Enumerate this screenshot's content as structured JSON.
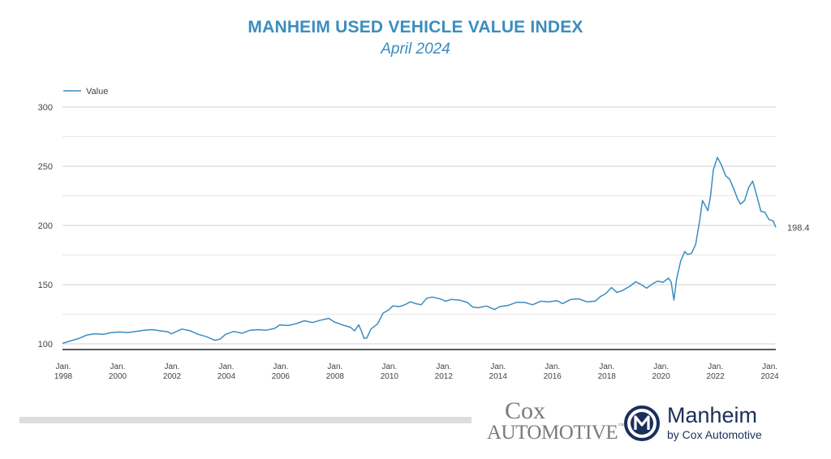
{
  "header": {
    "title": "MANHEIM USED VEHICLE VALUE INDEX",
    "subtitle": "April 2024"
  },
  "branding": {
    "cox_line1": "Cox",
    "cox_line2": "AUTOMOTIVE",
    "cox_tm": "™",
    "manheim_name": "Manheim",
    "manheim_tagline": "by Cox Automotive"
  },
  "colors": {
    "series": "#3a8dbf",
    "title": "#3a8dbf",
    "grid": "#d0d0d0",
    "axis": "#222222",
    "brand_navy": "#1a2f5a",
    "cox_grey": "#7a7a7a"
  },
  "chart_data": {
    "type": "line",
    "title": "",
    "xlabel": "",
    "ylabel": "",
    "legend": {
      "entries": [
        "Value"
      ],
      "position": "top-left"
    },
    "grid": true,
    "ylim": [
      100,
      300
    ],
    "yticks": [
      100,
      150,
      200,
      250,
      300
    ],
    "xlim": [
      1998.0,
      2024.25
    ],
    "xticks": [
      {
        "x": 1998,
        "label1": "Jan.",
        "label2": "1998"
      },
      {
        "x": 2000,
        "label1": "Jan.",
        "label2": "2000"
      },
      {
        "x": 2002,
        "label1": "Jan.",
        "label2": "2002"
      },
      {
        "x": 2004,
        "label1": "Jan.",
        "label2": "2004"
      },
      {
        "x": 2006,
        "label1": "Jan.",
        "label2": "2006"
      },
      {
        "x": 2008,
        "label1": "Jan.",
        "label2": "2008"
      },
      {
        "x": 2010,
        "label1": "Jan.",
        "label2": "2010"
      },
      {
        "x": 2012,
        "label1": "Jan.",
        "label2": "2012"
      },
      {
        "x": 2014,
        "label1": "Jan.",
        "label2": "2014"
      },
      {
        "x": 2016,
        "label1": "Jan.",
        "label2": "2016"
      },
      {
        "x": 2018,
        "label1": "Jan.",
        "label2": "2018"
      },
      {
        "x": 2020,
        "label1": "Jan.",
        "label2": "2020"
      },
      {
        "x": 2022,
        "label1": "Jan.",
        "label2": "2022"
      },
      {
        "x": 2024,
        "label1": "Jan.",
        "label2": "2024"
      }
    ],
    "end_label": "198.4",
    "series": [
      {
        "name": "Value",
        "points": [
          [
            1998.0,
            100.5
          ],
          [
            1998.3,
            102.5
          ],
          [
            1998.6,
            104.5
          ],
          [
            1998.9,
            107.5
          ],
          [
            1999.2,
            108.5
          ],
          [
            1999.5,
            108
          ],
          [
            1999.8,
            109.5
          ],
          [
            2000.1,
            110
          ],
          [
            2000.4,
            109.5
          ],
          [
            2000.7,
            110.5
          ],
          [
            2001.0,
            111.5
          ],
          [
            2001.3,
            112
          ],
          [
            2001.6,
            111
          ],
          [
            2001.9,
            110
          ],
          [
            2002.0,
            108.5
          ],
          [
            2002.2,
            110.5
          ],
          [
            2002.4,
            112.5
          ],
          [
            2002.7,
            111
          ],
          [
            2003.0,
            108
          ],
          [
            2003.3,
            106
          ],
          [
            2003.6,
            103
          ],
          [
            2003.8,
            104
          ],
          [
            2004.0,
            108
          ],
          [
            2004.3,
            110.5
          ],
          [
            2004.6,
            109
          ],
          [
            2004.9,
            111.5
          ],
          [
            2005.2,
            112
          ],
          [
            2005.5,
            111.5
          ],
          [
            2005.8,
            113
          ],
          [
            2006.0,
            116
          ],
          [
            2006.3,
            115.5
          ],
          [
            2006.6,
            117
          ],
          [
            2006.9,
            119.5
          ],
          [
            2007.2,
            118
          ],
          [
            2007.5,
            120
          ],
          [
            2007.8,
            121.5
          ],
          [
            2008.0,
            118.5
          ],
          [
            2008.3,
            116
          ],
          [
            2008.6,
            114
          ],
          [
            2008.75,
            111
          ],
          [
            2008.9,
            116
          ],
          [
            2009.0,
            111
          ],
          [
            2009.1,
            104.5
          ],
          [
            2009.2,
            105
          ],
          [
            2009.35,
            112.5
          ],
          [
            2009.6,
            117
          ],
          [
            2009.8,
            126
          ],
          [
            2010.0,
            128.5
          ],
          [
            2010.15,
            132
          ],
          [
            2010.4,
            131.5
          ],
          [
            2010.6,
            133
          ],
          [
            2010.8,
            135.5
          ],
          [
            2011.0,
            134
          ],
          [
            2011.2,
            133
          ],
          [
            2011.4,
            138.5
          ],
          [
            2011.6,
            139.5
          ],
          [
            2011.9,
            138
          ],
          [
            2012.1,
            136
          ],
          [
            2012.3,
            137.5
          ],
          [
            2012.6,
            137
          ],
          [
            2012.9,
            135
          ],
          [
            2013.1,
            131
          ],
          [
            2013.3,
            130.5
          ],
          [
            2013.6,
            132
          ],
          [
            2013.9,
            129
          ],
          [
            2014.1,
            131.5
          ],
          [
            2014.4,
            132.5
          ],
          [
            2014.7,
            135
          ],
          [
            2015.0,
            135
          ],
          [
            2015.3,
            133
          ],
          [
            2015.6,
            136
          ],
          [
            2015.9,
            135.5
          ],
          [
            2016.2,
            136.5
          ],
          [
            2016.4,
            134
          ],
          [
            2016.7,
            137.5
          ],
          [
            2017.0,
            138
          ],
          [
            2017.3,
            135.5
          ],
          [
            2017.6,
            136
          ],
          [
            2017.8,
            140
          ],
          [
            2018.0,
            142.5
          ],
          [
            2018.2,
            147.5
          ],
          [
            2018.4,
            143.5
          ],
          [
            2018.6,
            145
          ],
          [
            2018.9,
            149
          ],
          [
            2019.1,
            152.5
          ],
          [
            2019.3,
            150
          ],
          [
            2019.5,
            147
          ],
          [
            2019.7,
            150.5
          ],
          [
            2019.9,
            153
          ],
          [
            2020.1,
            152
          ],
          [
            2020.3,
            155.5
          ],
          [
            2020.4,
            152
          ],
          [
            2020.5,
            137
          ],
          [
            2020.6,
            155
          ],
          [
            2020.75,
            170
          ],
          [
            2020.9,
            178
          ],
          [
            2021.0,
            175.5
          ],
          [
            2021.15,
            176.5
          ],
          [
            2021.3,
            184
          ],
          [
            2021.45,
            204
          ],
          [
            2021.55,
            221
          ],
          [
            2021.65,
            217
          ],
          [
            2021.75,
            212.5
          ],
          [
            2021.85,
            225
          ],
          [
            2021.95,
            247
          ],
          [
            2022.1,
            257.5
          ],
          [
            2022.25,
            251
          ],
          [
            2022.4,
            242
          ],
          [
            2022.55,
            239
          ],
          [
            2022.7,
            231
          ],
          [
            2022.85,
            222
          ],
          [
            2022.95,
            218
          ],
          [
            2023.1,
            221
          ],
          [
            2023.25,
            232
          ],
          [
            2023.4,
            237.5
          ],
          [
            2023.55,
            225
          ],
          [
            2023.7,
            212
          ],
          [
            2023.85,
            211
          ],
          [
            2024.0,
            205
          ],
          [
            2024.15,
            204
          ],
          [
            2024.25,
            198.4
          ]
        ]
      }
    ]
  }
}
